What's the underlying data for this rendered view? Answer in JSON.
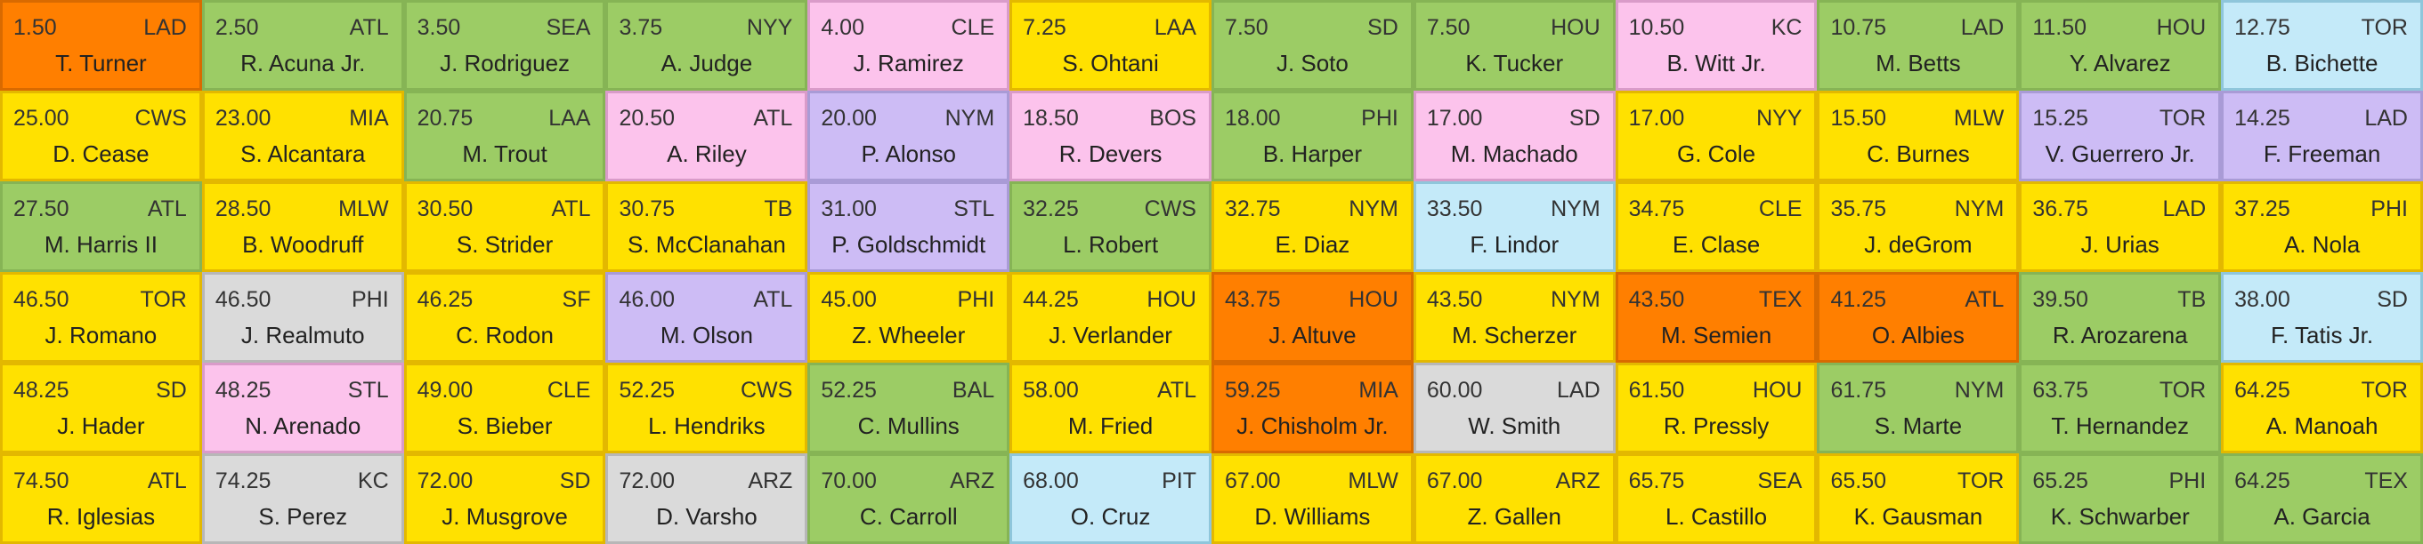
{
  "colors": {
    "orange": "#ff7f00",
    "green": "#9ccc65",
    "yellow": "#ffe100",
    "pink": "#fcc3ec",
    "purple": "#cdbcf5",
    "blue": "#c4eaf9",
    "gray": "#dadada"
  },
  "rows": [
    [
      {
        "adp": "1.50",
        "team": "LAD",
        "name": "T. Turner",
        "color": "orange"
      },
      {
        "adp": "2.50",
        "team": "ATL",
        "name": "R. Acuna Jr.",
        "color": "green"
      },
      {
        "adp": "3.50",
        "team": "SEA",
        "name": "J. Rodriguez",
        "color": "green"
      },
      {
        "adp": "3.75",
        "team": "NYY",
        "name": "A. Judge",
        "color": "green"
      },
      {
        "adp": "4.00",
        "team": "CLE",
        "name": "J. Ramirez",
        "color": "pink"
      },
      {
        "adp": "7.25",
        "team": "LAA",
        "name": "S. Ohtani",
        "color": "yellow"
      },
      {
        "adp": "7.50",
        "team": "SD",
        "name": "J. Soto",
        "color": "green"
      },
      {
        "adp": "7.50",
        "team": "HOU",
        "name": "K. Tucker",
        "color": "green"
      },
      {
        "adp": "10.50",
        "team": "KC",
        "name": "B. Witt Jr.",
        "color": "pink"
      },
      {
        "adp": "10.75",
        "team": "LAD",
        "name": "M. Betts",
        "color": "green"
      },
      {
        "adp": "11.50",
        "team": "HOU",
        "name": "Y. Alvarez",
        "color": "green"
      },
      {
        "adp": "12.75",
        "team": "TOR",
        "name": "B. Bichette",
        "color": "blue"
      }
    ],
    [
      {
        "adp": "25.00",
        "team": "CWS",
        "name": "D. Cease",
        "color": "yellow"
      },
      {
        "adp": "23.00",
        "team": "MIA",
        "name": "S. Alcantara",
        "color": "yellow"
      },
      {
        "adp": "20.75",
        "team": "LAA",
        "name": "M. Trout",
        "color": "green"
      },
      {
        "adp": "20.50",
        "team": "ATL",
        "name": "A. Riley",
        "color": "pink"
      },
      {
        "adp": "20.00",
        "team": "NYM",
        "name": "P. Alonso",
        "color": "purple"
      },
      {
        "adp": "18.50",
        "team": "BOS",
        "name": "R. Devers",
        "color": "pink"
      },
      {
        "adp": "18.00",
        "team": "PHI",
        "name": "B. Harper",
        "color": "green"
      },
      {
        "adp": "17.00",
        "team": "SD",
        "name": "M. Machado",
        "color": "pink"
      },
      {
        "adp": "17.00",
        "team": "NYY",
        "name": "G. Cole",
        "color": "yellow"
      },
      {
        "adp": "15.50",
        "team": "MLW",
        "name": "C. Burnes",
        "color": "yellow"
      },
      {
        "adp": "15.25",
        "team": "TOR",
        "name": "V. Guerrero Jr.",
        "color": "purple"
      },
      {
        "adp": "14.25",
        "team": "LAD",
        "name": "F. Freeman",
        "color": "purple"
      }
    ],
    [
      {
        "adp": "27.50",
        "team": "ATL",
        "name": "M. Harris II",
        "color": "green"
      },
      {
        "adp": "28.50",
        "team": "MLW",
        "name": "B. Woodruff",
        "color": "yellow"
      },
      {
        "adp": "30.50",
        "team": "ATL",
        "name": "S. Strider",
        "color": "yellow"
      },
      {
        "adp": "30.75",
        "team": "TB",
        "name": "S. McClanahan",
        "color": "yellow"
      },
      {
        "adp": "31.00",
        "team": "STL",
        "name": "P. Goldschmidt",
        "color": "purple"
      },
      {
        "adp": "32.25",
        "team": "CWS",
        "name": "L. Robert",
        "color": "green"
      },
      {
        "adp": "32.75",
        "team": "NYM",
        "name": "E. Diaz",
        "color": "yellow"
      },
      {
        "adp": "33.50",
        "team": "NYM",
        "name": "F. Lindor",
        "color": "blue"
      },
      {
        "adp": "34.75",
        "team": "CLE",
        "name": "E. Clase",
        "color": "yellow"
      },
      {
        "adp": "35.75",
        "team": "NYM",
        "name": "J. deGrom",
        "color": "yellow"
      },
      {
        "adp": "36.75",
        "team": "LAD",
        "name": "J. Urias",
        "color": "yellow"
      },
      {
        "adp": "37.25",
        "team": "PHI",
        "name": "A. Nola",
        "color": "yellow"
      }
    ],
    [
      {
        "adp": "46.50",
        "team": "TOR",
        "name": "J. Romano",
        "color": "yellow"
      },
      {
        "adp": "46.50",
        "team": "PHI",
        "name": "J. Realmuto",
        "color": "gray"
      },
      {
        "adp": "46.25",
        "team": "SF",
        "name": "C. Rodon",
        "color": "yellow"
      },
      {
        "adp": "46.00",
        "team": "ATL",
        "name": "M. Olson",
        "color": "purple"
      },
      {
        "adp": "45.00",
        "team": "PHI",
        "name": "Z. Wheeler",
        "color": "yellow"
      },
      {
        "adp": "44.25",
        "team": "HOU",
        "name": "J. Verlander",
        "color": "yellow"
      },
      {
        "adp": "43.75",
        "team": "HOU",
        "name": "J. Altuve",
        "color": "orange"
      },
      {
        "adp": "43.50",
        "team": "NYM",
        "name": "M. Scherzer",
        "color": "yellow"
      },
      {
        "adp": "43.50",
        "team": "TEX",
        "name": "M. Semien",
        "color": "orange"
      },
      {
        "adp": "41.25",
        "team": "ATL",
        "name": "O. Albies",
        "color": "orange"
      },
      {
        "adp": "39.50",
        "team": "TB",
        "name": "R. Arozarena",
        "color": "green"
      },
      {
        "adp": "38.00",
        "team": "SD",
        "name": "F. Tatis Jr.",
        "color": "blue"
      }
    ],
    [
      {
        "adp": "48.25",
        "team": "SD",
        "name": "J. Hader",
        "color": "yellow"
      },
      {
        "adp": "48.25",
        "team": "STL",
        "name": "N. Arenado",
        "color": "pink"
      },
      {
        "adp": "49.00",
        "team": "CLE",
        "name": "S. Bieber",
        "color": "yellow"
      },
      {
        "adp": "52.25",
        "team": "CWS",
        "name": "L. Hendriks",
        "color": "yellow"
      },
      {
        "adp": "52.25",
        "team": "BAL",
        "name": "C. Mullins",
        "color": "green"
      },
      {
        "adp": "58.00",
        "team": "ATL",
        "name": "M. Fried",
        "color": "yellow"
      },
      {
        "adp": "59.25",
        "team": "MIA",
        "name": "J. Chisholm Jr.",
        "color": "orange"
      },
      {
        "adp": "60.00",
        "team": "LAD",
        "name": "W. Smith",
        "color": "gray"
      },
      {
        "adp": "61.50",
        "team": "HOU",
        "name": "R. Pressly",
        "color": "yellow"
      },
      {
        "adp": "61.75",
        "team": "NYM",
        "name": "S. Marte",
        "color": "green"
      },
      {
        "adp": "63.75",
        "team": "TOR",
        "name": "T. Hernandez",
        "color": "green"
      },
      {
        "adp": "64.25",
        "team": "TOR",
        "name": "A. Manoah",
        "color": "yellow"
      }
    ],
    [
      {
        "adp": "74.50",
        "team": "ATL",
        "name": "R. Iglesias",
        "color": "yellow"
      },
      {
        "adp": "74.25",
        "team": "KC",
        "name": "S. Perez",
        "color": "gray"
      },
      {
        "adp": "72.00",
        "team": "SD",
        "name": "J. Musgrove",
        "color": "yellow"
      },
      {
        "adp": "72.00",
        "team": "ARZ",
        "name": "D. Varsho",
        "color": "gray"
      },
      {
        "adp": "70.00",
        "team": "ARZ",
        "name": "C. Carroll",
        "color": "green"
      },
      {
        "adp": "68.00",
        "team": "PIT",
        "name": "O. Cruz",
        "color": "blue"
      },
      {
        "adp": "67.00",
        "team": "MLW",
        "name": "D. Williams",
        "color": "yellow"
      },
      {
        "adp": "67.00",
        "team": "ARZ",
        "name": "Z. Gallen",
        "color": "yellow"
      },
      {
        "adp": "65.75",
        "team": "SEA",
        "name": "L. Castillo",
        "color": "yellow"
      },
      {
        "adp": "65.50",
        "team": "TOR",
        "name": "K. Gausman",
        "color": "yellow"
      },
      {
        "adp": "65.25",
        "team": "PHI",
        "name": "K. Schwarber",
        "color": "green"
      },
      {
        "adp": "64.25",
        "team": "TEX",
        "name": "A. Garcia",
        "color": "green"
      }
    ]
  ]
}
